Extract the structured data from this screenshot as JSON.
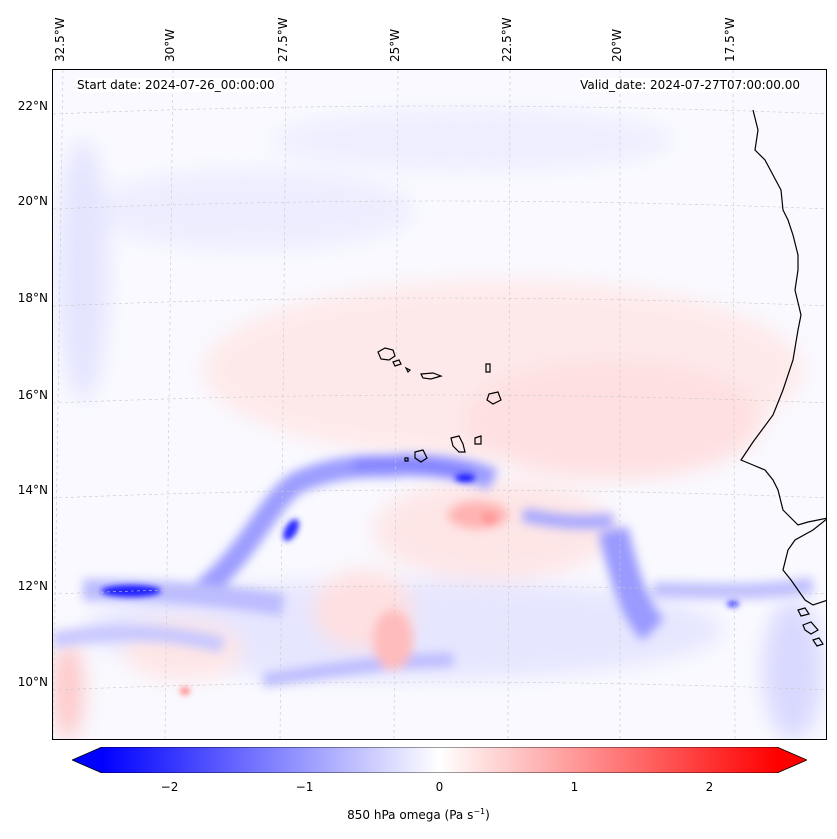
{
  "map": {
    "start_label": "Start date: 2024-07-26_00:00:00",
    "valid_label": "Valid_date: 2024-07-27T07:00:00.00",
    "lon_labels": [
      "32.5°W",
      "30°W",
      "27.5°W",
      "25°W",
      "22.5°W",
      "20°W",
      "17.5°W"
    ],
    "lat_labels": [
      "22°N",
      "20°N",
      "18°N",
      "16°N",
      "14°N",
      "12°N",
      "10°N"
    ],
    "extent": {
      "lon_min": -33.0,
      "lon_max": -15.5,
      "lat_min": 8.8,
      "lat_max": 22.8
    },
    "coastline_color": "#000000",
    "gridline_color": "#c8c8c8"
  },
  "colorbar": {
    "ticks": [
      "−2",
      "−1",
      "0",
      "1",
      "2"
    ],
    "tick_values": [
      -2,
      -1,
      0,
      1,
      2
    ],
    "vmin": -2.5,
    "vmax": 2.5,
    "colormap": "bwr",
    "extend": "both",
    "label_prefix": "850 hPa omega (Pa s",
    "label_exp": "−1",
    "label_suffix": ")"
  },
  "field_features": [
    {
      "lon": -31.4,
      "lat": 12.0,
      "omega": -2.4,
      "note": "strong ascent west"
    },
    {
      "lon": -27.5,
      "lat": 13.2,
      "omega": -2.0,
      "note": "ascent band"
    },
    {
      "lon": -23.0,
      "lat": 14.3,
      "omega": -1.8,
      "note": "ascent band"
    },
    {
      "lon": -26.0,
      "lat": 14.5,
      "omega": -1.2,
      "note": "ascent arc"
    },
    {
      "lon": -20.3,
      "lat": 11.8,
      "omega": -1.3,
      "note": "ascent near coast"
    },
    {
      "lon": -16.0,
      "lat": 10.5,
      "omega": -0.9,
      "note": "ascent coast"
    },
    {
      "lon": -22.5,
      "lat": 13.4,
      "omega": 0.8,
      "note": "descent"
    },
    {
      "lon": -24.5,
      "lat": 11.8,
      "omega": 0.7,
      "note": "descent"
    },
    {
      "lon": -32.6,
      "lat": 10.0,
      "omega": 0.6,
      "note": "descent edge"
    }
  ]
}
